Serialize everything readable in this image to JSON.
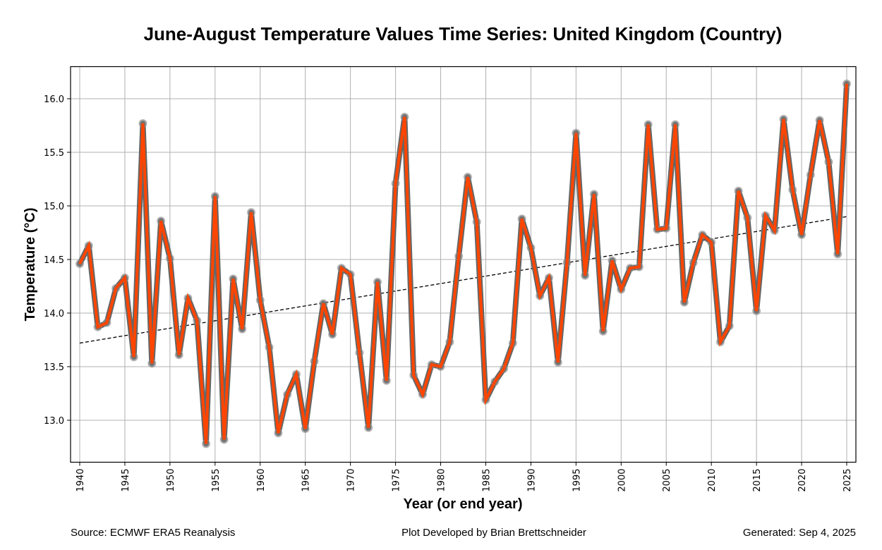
{
  "colors": {
    "series_line": "#FF4500",
    "series_outline": "#666666",
    "marker": "#808080",
    "trend": "#000000",
    "grid": "#b0b0b0"
  },
  "footer": {
    "source": "Source: ECMWF ERA5 Reanalysis",
    "credit": "Plot Developed by Brian Brettschneider",
    "generated": "Generated: Sep 4, 2025"
  },
  "chart_data": {
    "type": "line",
    "title": "June-August Temperature Values Time Series: United Kingdom (Country)",
    "xlabel": "Year (or end year)",
    "ylabel": "Temperature (°C)",
    "xlim": [
      1939,
      2025.9
    ],
    "ylim": [
      12.65,
      16.3
    ],
    "grid": true,
    "x_ticks": [
      1940,
      1945,
      1950,
      1955,
      1960,
      1965,
      1970,
      1975,
      1980,
      1985,
      1990,
      1995,
      2000,
      2005,
      2010,
      2015,
      2020,
      2025
    ],
    "y_ticks": [
      13.0,
      13.5,
      14.0,
      14.5,
      15.0,
      15.5,
      16.0
    ],
    "y_tick_labels": [
      "13.0",
      "13.5",
      "14.0",
      "14.5",
      "15.0",
      "15.5",
      "16.0"
    ],
    "series": [
      {
        "name": "June-August mean temperature",
        "x": [
          1940,
          1941,
          1942,
          1943,
          1944,
          1945,
          1946,
          1947,
          1948,
          1949,
          1950,
          1951,
          1952,
          1953,
          1954,
          1955,
          1956,
          1957,
          1958,
          1959,
          1960,
          1961,
          1962,
          1963,
          1964,
          1965,
          1966,
          1967,
          1968,
          1969,
          1970,
          1971,
          1972,
          1973,
          1974,
          1975,
          1976,
          1977,
          1978,
          1979,
          1980,
          1981,
          1982,
          1983,
          1984,
          1985,
          1986,
          1987,
          1988,
          1989,
          1990,
          1991,
          1992,
          1993,
          1994,
          1995,
          1996,
          1997,
          1998,
          1999,
          2000,
          2001,
          2002,
          2003,
          2004,
          2005,
          2006,
          2007,
          2008,
          2009,
          2010,
          2011,
          2012,
          2013,
          2014,
          2015,
          2016,
          2017,
          2018,
          2019,
          2020,
          2021,
          2022,
          2023,
          2024,
          2025
        ],
        "values": [
          14.46,
          14.63,
          13.87,
          13.91,
          14.23,
          14.33,
          13.59,
          15.77,
          13.53,
          14.86,
          14.51,
          13.61,
          14.14,
          13.93,
          12.78,
          15.09,
          12.82,
          14.32,
          13.85,
          14.94,
          14.12,
          13.68,
          12.88,
          13.24,
          13.43,
          12.92,
          13.55,
          14.09,
          13.8,
          14.42,
          14.36,
          13.63,
          12.93,
          14.29,
          13.37,
          15.21,
          15.83,
          13.42,
          13.24,
          13.52,
          13.5,
          13.73,
          14.53,
          15.27,
          14.85,
          13.19,
          13.36,
          13.48,
          13.72,
          14.88,
          14.61,
          14.16,
          14.33,
          13.54,
          14.47,
          15.68,
          14.35,
          15.11,
          13.83,
          14.49,
          14.22,
          14.42,
          14.43,
          15.76,
          14.78,
          14.79,
          15.76,
          14.1,
          14.47,
          14.73,
          14.66,
          13.73,
          13.88,
          15.14,
          14.89,
          14.02,
          14.91,
          14.77,
          15.81,
          15.15,
          14.73,
          15.29,
          15.8,
          15.41,
          14.55,
          16.14
        ]
      },
      {
        "name": "Linear trend",
        "style": "dashed",
        "x": [
          1940,
          2025
        ],
        "values": [
          13.72,
          14.9
        ]
      }
    ]
  }
}
